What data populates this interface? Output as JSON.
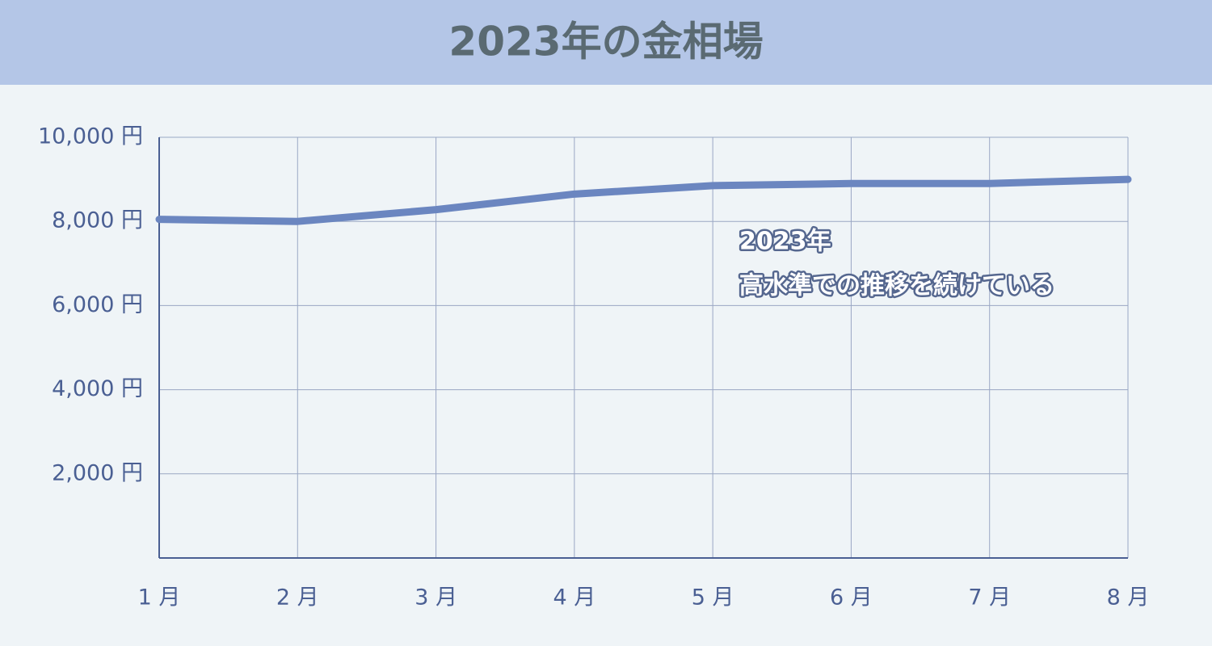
{
  "chart_data": {
    "type": "line",
    "title": "2023年の金相場",
    "categories": [
      "1 月",
      "2 月",
      "3 月",
      "4 月",
      "5 月",
      "6 月",
      "7 月",
      "8 月"
    ],
    "series": [
      {
        "color": "#6b86c0",
        "values": [
          8050,
          8000,
          8280,
          8650,
          8850,
          8900,
          8900,
          9000
        ]
      }
    ],
    "ylim": [
      0,
      10000
    ],
    "yticks": [
      {
        "value": 2000,
        "label": "2,000 円"
      },
      {
        "value": 4000,
        "label": "4,000 円"
      },
      {
        "value": 6000,
        "label": "6,000 円"
      },
      {
        "value": 8000,
        "label": "8,000 円"
      },
      {
        "value": 10000,
        "label": "10,000 円"
      }
    ],
    "grid": true,
    "annotation": [
      "2023年",
      "高水準での推移を続けている"
    ]
  }
}
